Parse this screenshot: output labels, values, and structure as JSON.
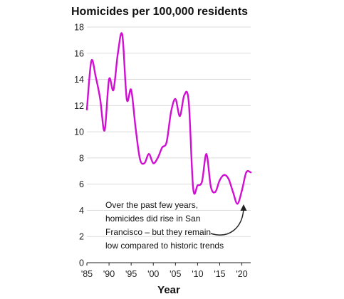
{
  "chart_data": {
    "type": "line",
    "title": "Homicides per 100,000 residents",
    "xlabel": "Year",
    "ylabel": "",
    "xlim": [
      1985,
      2022
    ],
    "ylim": [
      0,
      18
    ],
    "y_ticks": [
      0,
      2,
      4,
      6,
      8,
      10,
      12,
      14,
      16,
      18
    ],
    "x_ticks": [
      1985,
      1990,
      1995,
      2000,
      2005,
      2010,
      2015,
      2020
    ],
    "x_tick_labels": [
      "'85",
      "'90",
      "'95",
      "'00",
      "'05",
      "'10",
      "'15",
      "'20"
    ],
    "grid": true,
    "line_color": "#d10fd3",
    "series": [
      {
        "x": [
          1985,
          1986,
          1987,
          1988,
          1989,
          1990,
          1991,
          1992,
          1993,
          1994,
          1995,
          1996,
          1997,
          1998,
          1999,
          2000,
          2001,
          2002,
          2003,
          2004,
          2005,
          2006,
          2007,
          2008,
          2009,
          2010,
          2011,
          2012,
          2013,
          2014,
          2015,
          2016,
          2017,
          2018,
          2019,
          2020,
          2021,
          2022
        ],
        "y": [
          11.7,
          15.4,
          14.2,
          12.5,
          10.1,
          14.0,
          13.2,
          16.0,
          17.4,
          12.5,
          13.2,
          10.3,
          7.9,
          7.6,
          8.3,
          7.6,
          8.0,
          8.8,
          9.2,
          11.5,
          12.5,
          11.2,
          12.8,
          12.3,
          5.7,
          5.9,
          6.2,
          8.3,
          5.8,
          5.4,
          6.3,
          6.7,
          6.4,
          5.4,
          4.5,
          5.5,
          6.9,
          6.9
        ]
      }
    ],
    "annotation": {
      "lines": [
        "Over the past few years,",
        "homicides did rise in San",
        "Francisco – but they remain",
        "low compared to historic trends"
      ]
    }
  }
}
